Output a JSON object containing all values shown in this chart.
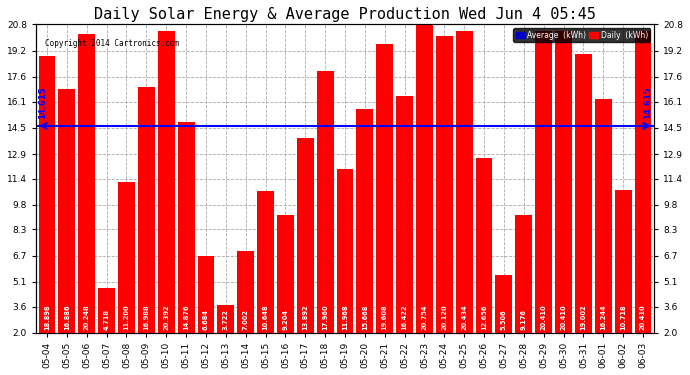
{
  "title": "Daily Solar Energy & Average Production Wed Jun 4 05:45",
  "copyright": "Copyright 2014 Cartronics.com",
  "categories": [
    "05-04",
    "05-05",
    "05-06",
    "05-07",
    "05-08",
    "05-09",
    "05-10",
    "05-11",
    "05-12",
    "05-13",
    "05-14",
    "05-15",
    "05-16",
    "05-17",
    "05-18",
    "05-19",
    "05-20",
    "05-21",
    "05-22",
    "05-23",
    "05-24",
    "05-25",
    "05-26",
    "05-27",
    "05-28",
    "05-29",
    "05-30",
    "05-31",
    "06-01",
    "06-02",
    "06-03"
  ],
  "values": [
    18.898,
    16.886,
    20.248,
    4.718,
    11.2,
    16.988,
    20.392,
    14.876,
    6.684,
    3.722,
    7.002,
    10.648,
    9.204,
    13.892,
    17.96,
    11.968,
    15.668,
    19.608,
    16.422,
    20.754,
    20.12,
    20.434,
    12.656,
    5.506,
    9.176,
    20.41,
    20.41,
    19.002,
    16.244,
    10.718,
    20.41
  ],
  "average": 14.615,
  "bar_color": "#FF0000",
  "average_line_color": "#0000FF",
  "ylim_min": 2.0,
  "ylim_max": 20.8,
  "yticks": [
    2.0,
    3.6,
    5.1,
    6.7,
    8.3,
    9.8,
    11.4,
    12.9,
    14.5,
    16.1,
    17.6,
    19.2,
    20.8
  ],
  "background_color": "#FFFFFF",
  "plot_bg_color": "#FFFFFF",
  "grid_color": "#AAAAAA",
  "title_fontsize": 11,
  "tick_fontsize": 6.5,
  "legend_avg_color": "#0000CD",
  "legend_daily_color": "#FF0000",
  "avg_label": "14.615",
  "avg_label_color": "#0000FF",
  "value_label_fontsize": 4.8
}
